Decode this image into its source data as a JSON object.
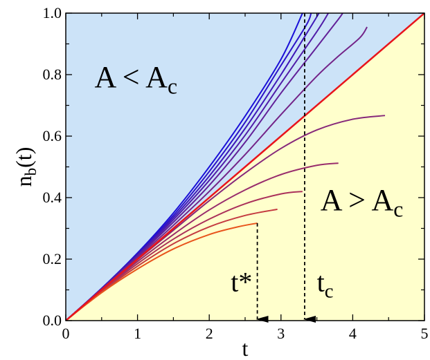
{
  "chart_data": {
    "type": "line",
    "xlabel": "t",
    "ylabel": {
      "main": "n",
      "sub": "b",
      "suffix": "(t)"
    },
    "xlim": [
      0,
      5
    ],
    "ylim": [
      0,
      1
    ],
    "x_ticks": [
      0,
      1,
      2,
      3,
      4,
      5
    ],
    "y_ticks": [
      0.0,
      0.2,
      0.4,
      0.6,
      0.8,
      1.0
    ],
    "x_tick_labels": [
      "0",
      "1",
      "2",
      "3",
      "4",
      "5"
    ],
    "y_tick_labels": [
      "0.0",
      "0.2",
      "0.4",
      "0.6",
      "0.8",
      "1.0"
    ],
    "grid": false,
    "regions": [
      {
        "id": "above",
        "color": "#cce3f8",
        "label": {
          "main": "A < A",
          "sub": "c",
          "x": 0.4,
          "y": 0.76
        }
      },
      {
        "id": "below",
        "color": "#ffffcc",
        "label": {
          "main": "A > A",
          "sub": "c",
          "x": 3.55,
          "y": 0.36
        }
      }
    ],
    "critical_line": {
      "color": "#e8141c",
      "x": [
        0,
        5
      ],
      "y": [
        0,
        1
      ]
    },
    "series": [
      {
        "color": "#1a10d8",
        "x": [
          0,
          0.5,
          1.0,
          1.5,
          2.0,
          2.5,
          3.0,
          3.3
        ],
        "y": [
          0,
          0.105,
          0.22,
          0.35,
          0.5,
          0.665,
          0.85,
          1.0
        ]
      },
      {
        "color": "#2c12c8",
        "x": [
          0,
          0.5,
          1.0,
          1.5,
          2.0,
          2.5,
          3.0,
          3.35,
          3.42
        ],
        "y": [
          0,
          0.105,
          0.217,
          0.342,
          0.485,
          0.645,
          0.83,
          0.96,
          1.0
        ]
      },
      {
        "color": "#3e18b8",
        "x": [
          0,
          0.5,
          1.0,
          1.5,
          2.0,
          2.5,
          3.0,
          3.4,
          3.53
        ],
        "y": [
          0,
          0.104,
          0.214,
          0.335,
          0.47,
          0.625,
          0.8,
          0.95,
          1.0
        ]
      },
      {
        "color": "#501ca8",
        "x": [
          0,
          0.5,
          1.0,
          1.5,
          2.0,
          2.5,
          3.0,
          3.5,
          3.66
        ],
        "y": [
          0,
          0.104,
          0.212,
          0.328,
          0.456,
          0.603,
          0.772,
          0.94,
          1.0
        ]
      },
      {
        "color": "#622098",
        "x": [
          0,
          0.5,
          1.0,
          1.5,
          2.0,
          2.5,
          3.0,
          3.5,
          3.8,
          3.86
        ],
        "y": [
          0,
          0.103,
          0.209,
          0.32,
          0.44,
          0.58,
          0.74,
          0.89,
          0.98,
          1.0
        ]
      },
      {
        "color": "#742488",
        "x": [
          0,
          0.5,
          1.0,
          1.5,
          2.0,
          2.5,
          3.0,
          3.5,
          3.8,
          4.1,
          4.2
        ],
        "y": [
          0,
          0.102,
          0.205,
          0.31,
          0.42,
          0.54,
          0.67,
          0.795,
          0.86,
          0.92,
          0.955
        ]
      },
      {
        "color": "#86287a",
        "x": [
          0,
          0.5,
          1.0,
          1.5,
          2.0,
          2.5,
          3.0,
          3.5,
          4.0,
          4.45
        ],
        "y": [
          0,
          0.1,
          0.198,
          0.294,
          0.39,
          0.48,
          0.56,
          0.62,
          0.655,
          0.667
        ]
      },
      {
        "color": "#982c6c",
        "x": [
          0,
          0.5,
          1.0,
          1.5,
          2.0,
          2.5,
          3.0,
          3.5,
          3.8
        ],
        "y": [
          0,
          0.098,
          0.192,
          0.28,
          0.36,
          0.425,
          0.475,
          0.505,
          0.512
        ]
      },
      {
        "color": "#aa305a",
        "x": [
          0,
          0.5,
          1.0,
          1.5,
          2.0,
          2.5,
          3.0,
          3.3
        ],
        "y": [
          0,
          0.096,
          0.185,
          0.265,
          0.33,
          0.38,
          0.412,
          0.42
        ]
      },
      {
        "color": "#c43a40",
        "x": [
          0,
          0.5,
          1.0,
          1.5,
          2.0,
          2.5,
          2.95
        ],
        "y": [
          0,
          0.094,
          0.177,
          0.25,
          0.305,
          0.342,
          0.362
        ]
      },
      {
        "color": "#e8541c",
        "x": [
          0,
          0.5,
          1.0,
          1.5,
          2.0,
          2.4,
          2.67
        ],
        "y": [
          0,
          0.091,
          0.168,
          0.233,
          0.28,
          0.305,
          0.317
        ]
      }
    ],
    "annotations": [
      {
        "id": "t-star",
        "label_main": "t*",
        "label_sub": "",
        "x": 2.67,
        "y_from": 0.317,
        "y_to": 0.0,
        "label_x": 2.3,
        "label_y": 0.095
      },
      {
        "id": "t-c",
        "label_main": "t",
        "label_sub": "c",
        "x": 3.33,
        "y_from": 1.0,
        "y_to": 0.0,
        "label_x": 3.5,
        "label_y": 0.095
      }
    ]
  }
}
